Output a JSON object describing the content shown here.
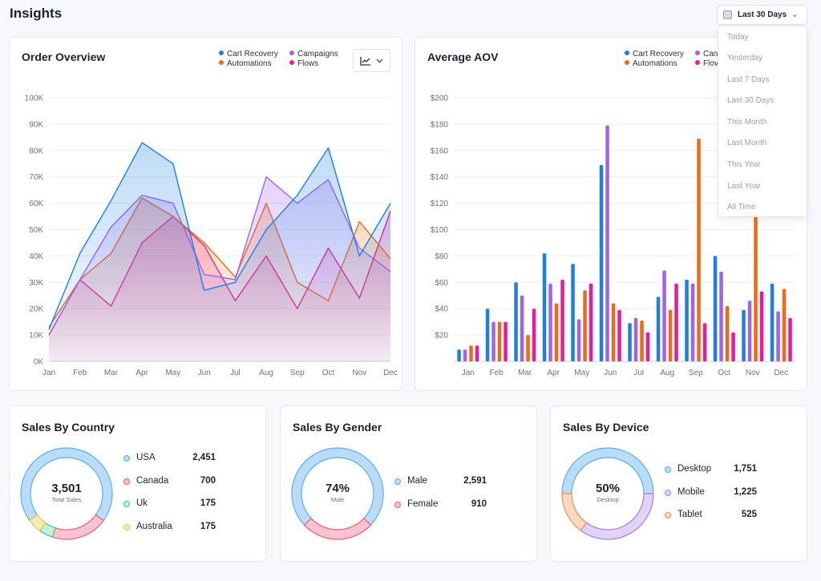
{
  "page": {
    "title": "Insights"
  },
  "date_filter": {
    "selected": "Last 30 Days",
    "options": [
      "Today",
      "Yesterday",
      "Last 7 Days",
      "Last 30 Days",
      "This Month",
      "Last Month",
      "This Year",
      "Last Year",
      "All Time"
    ]
  },
  "order_overview": {
    "title": "Order Overview",
    "legend": [
      "Cart Recovery",
      "Campaigns",
      "Automations",
      "Flows"
    ]
  },
  "average_aov": {
    "title": "Average AOV",
    "legend_visible": [
      "Cart Recovery",
      "Can",
      "Automations",
      "Flov"
    ]
  },
  "colors": {
    "cart_recovery": "#1d7fe3",
    "campaigns": "#a063ea",
    "automations": "#ef6a12",
    "flows": "#ec1a97"
  },
  "chart_data": [
    {
      "type": "area",
      "title": "Order Overview",
      "categories": [
        "Jan",
        "Feb",
        "Mar",
        "Apr",
        "May",
        "Jun",
        "Jul",
        "Aug",
        "Sep",
        "Oct",
        "Nov",
        "Dec"
      ],
      "y_ticks": [
        "100K",
        "90K",
        "80K",
        "70K",
        "60K",
        "50K",
        "40K",
        "30K",
        "20K",
        "10K",
        "0K"
      ],
      "ylim": [
        0,
        100000
      ],
      "grid": true,
      "legend_position": "top-right",
      "series": [
        {
          "name": "Cart Recovery",
          "values": [
            12000,
            41000,
            61000,
            83000,
            75000,
            27000,
            30000,
            50000,
            63000,
            81000,
            40000,
            60000
          ]
        },
        {
          "name": "Campaigns",
          "values": [
            10000,
            31000,
            51000,
            63000,
            60000,
            33000,
            31000,
            70000,
            60000,
            69000,
            43000,
            34000
          ]
        },
        {
          "name": "Automations",
          "values": [
            13000,
            31000,
            41000,
            62000,
            55000,
            45000,
            32000,
            60000,
            30000,
            23000,
            53000,
            39000
          ]
        },
        {
          "name": "Flows",
          "values": [
            10000,
            31000,
            21000,
            45000,
            55000,
            44000,
            23000,
            40000,
            20000,
            43000,
            24000,
            57000
          ]
        }
      ]
    },
    {
      "type": "bar",
      "title": "Average AOV",
      "categories": [
        "Jan",
        "Feb",
        "Mar",
        "Apr",
        "May",
        "Jun",
        "Jul",
        "Aug",
        "Sep",
        "Oct",
        "Nov",
        "Dec"
      ],
      "y_ticks": [
        "$200",
        "$180",
        "$160",
        "$140",
        "$120",
        "$100",
        "$80",
        "$60",
        "$40",
        "$20"
      ],
      "ylim": [
        0,
        200
      ],
      "grid": true,
      "legend_position": "top-right",
      "series": [
        {
          "name": "Cart Recovery",
          "values": [
            9,
            40,
            60,
            82,
            74,
            149,
            29,
            49,
            62,
            80,
            39,
            59
          ]
        },
        {
          "name": "Campaigns",
          "values": [
            9,
            30,
            50,
            59,
            32,
            179,
            33,
            69,
            59,
            68,
            46,
            38
          ]
        },
        {
          "name": "Automations",
          "values": [
            12,
            30,
            20,
            44,
            54,
            44,
            31,
            39,
            169,
            42,
            114,
            55
          ]
        },
        {
          "name": "Flows",
          "values": [
            12,
            30,
            40,
            62,
            59,
            39,
            22,
            59,
            29,
            22,
            53,
            33
          ]
        }
      ]
    },
    {
      "type": "pie",
      "title": "Sales By Country",
      "center_value": "3,501",
      "center_label": "Total Sales",
      "labels": [
        "USA",
        "Canada",
        "Uk",
        "Australia"
      ],
      "display_values": [
        "2,451",
        "700",
        "175",
        "175"
      ],
      "values": [
        2451,
        700,
        175,
        175
      ],
      "colors": [
        "#b9dcfb",
        "#fbc3d0",
        "#c4f0d4",
        "#fde9b8"
      ],
      "stroke_colors": [
        "#5aaef2",
        "#ef5c83",
        "#3fcf7b",
        "#f2c34c"
      ]
    },
    {
      "type": "pie",
      "title": "Sales By Gender",
      "center_value": "74%",
      "center_label": "Male",
      "labels": [
        "Male",
        "Female"
      ],
      "display_values": [
        "2,591",
        "910"
      ],
      "values": [
        2591,
        910
      ],
      "colors": [
        "#b9dcfb",
        "#fbc3d0"
      ],
      "stroke_colors": [
        "#5aaef2",
        "#ef5c83"
      ]
    },
    {
      "type": "pie",
      "title": "Sales By Device",
      "center_value": "50%",
      "center_label": "Desktop",
      "labels": [
        "Desktop",
        "Mobile",
        "Tablet"
      ],
      "display_values": [
        "1,751",
        "1,225",
        "525"
      ],
      "values": [
        1751,
        1225,
        525
      ],
      "colors": [
        "#b9dcfb",
        "#e2d3fb",
        "#fdd9c0"
      ],
      "stroke_colors": [
        "#5aaef2",
        "#a97bee",
        "#f2904c"
      ]
    }
  ]
}
